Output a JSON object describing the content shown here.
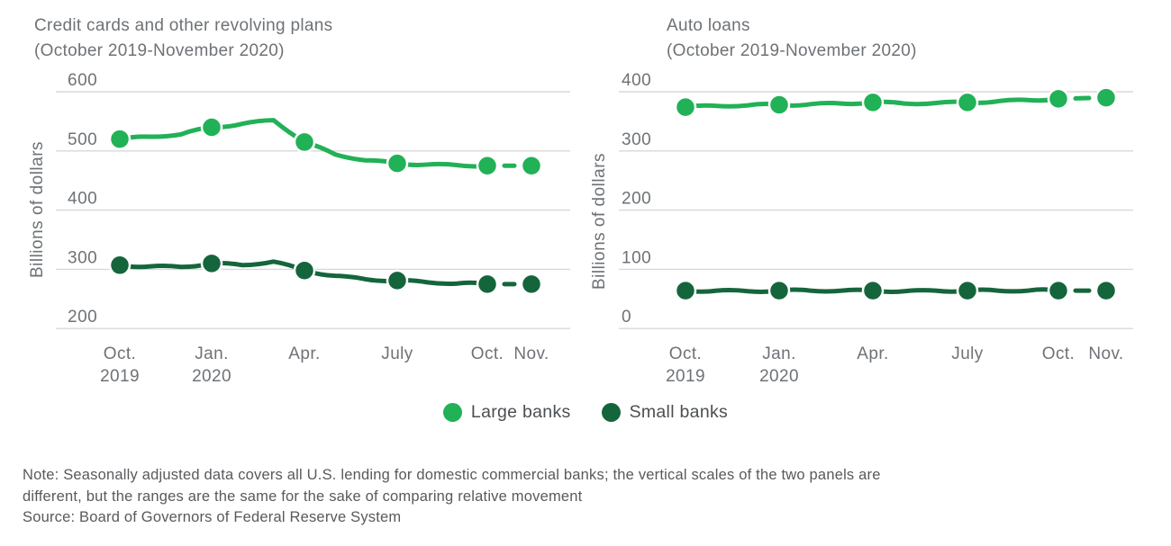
{
  "colors": {
    "large": "#21b156",
    "small": "#15653c",
    "grid": "#d8d8d8",
    "axis_text": "#6e7276",
    "note_text": "#57595c",
    "legend_text": "#4b4f53"
  },
  "legend": {
    "items": [
      {
        "label": "Large banks",
        "series": "large"
      },
      {
        "label": "Small banks",
        "series": "small"
      }
    ]
  },
  "notes": {
    "line1": "Note: Seasonally adjusted data covers all U.S. lending for domestic commercial banks; the vertical scales of the two panels are",
    "line2": "different, but the ranges are the same for the sake of comparing relative movement",
    "source": "Source: Board of Governors of Federal Reserve System"
  },
  "chart_data": [
    {
      "type": "line",
      "title": "Credit cards and other revolving plans",
      "subtitle": "(October 2019-November 2020)",
      "ylabel": "Billions of dollars",
      "ylim": [
        200,
        600
      ],
      "yticks": [
        600,
        500,
        400,
        300,
        200
      ],
      "grid": true,
      "legend_position": "bottom-center",
      "x": [
        "Oct 2019",
        "Nov 2019",
        "Dec 2019",
        "Jan 2020",
        "Feb 2020",
        "Mar 2020",
        "Apr 2020",
        "May 2020",
        "Jun 2020",
        "Jul 2020",
        "Aug 2020",
        "Sep 2020",
        "Oct 2020",
        "Nov 2020"
      ],
      "x_tick_labels": [
        {
          "line1": "Oct.",
          "line2": "2019"
        },
        {
          "line1": "Jan.",
          "line2": "2020"
        },
        {
          "line1": "Apr."
        },
        {
          "line1": "July"
        },
        {
          "line1": "Oct."
        },
        {
          "line1": "Nov."
        }
      ],
      "marker_month_indices": [
        0,
        3,
        6,
        9,
        12,
        13
      ],
      "series": [
        {
          "name": "Large banks",
          "key": "large",
          "values": [
            520,
            524,
            528,
            540,
            546,
            552,
            515,
            494,
            484,
            479,
            477,
            476,
            475,
            475
          ]
        },
        {
          "name": "Small banks",
          "key": "small",
          "values": [
            307,
            305,
            304,
            310,
            307,
            313,
            298,
            289,
            283,
            281,
            278,
            276,
            275,
            275
          ]
        }
      ]
    },
    {
      "type": "line",
      "title": "Auto loans",
      "subtitle": "(October 2019-November 2020)",
      "ylabel": "Billions of dollars",
      "ylim": [
        0,
        400
      ],
      "yticks": [
        400,
        300,
        200,
        100,
        0
      ],
      "grid": true,
      "legend_position": "bottom-center",
      "x": [
        "Oct 2019",
        "Nov 2019",
        "Dec 2019",
        "Jan 2020",
        "Feb 2020",
        "Mar 2020",
        "Apr 2020",
        "May 2020",
        "Jun 2020",
        "Jul 2020",
        "Aug 2020",
        "Sep 2020",
        "Oct 2020",
        "Nov 2020"
      ],
      "x_tick_labels": [
        {
          "line1": "Oct.",
          "line2": "2019"
        },
        {
          "line1": "Jan.",
          "line2": "2020"
        },
        {
          "line1": "Apr."
        },
        {
          "line1": "July"
        },
        {
          "line1": "Oct."
        },
        {
          "line1": "Nov."
        }
      ],
      "marker_month_indices": [
        0,
        3,
        6,
        9,
        12,
        13
      ],
      "series": [
        {
          "name": "Large banks",
          "key": "large",
          "values": [
            374,
            376,
            377,
            378,
            379,
            380,
            382,
            380,
            381,
            382,
            384,
            386,
            388,
            390
          ]
        },
        {
          "name": "Small banks",
          "key": "small",
          "values": [
            64,
            64,
            63,
            64,
            64,
            64,
            64,
            63,
            64,
            64,
            64,
            64,
            64,
            64
          ]
        }
      ]
    }
  ]
}
